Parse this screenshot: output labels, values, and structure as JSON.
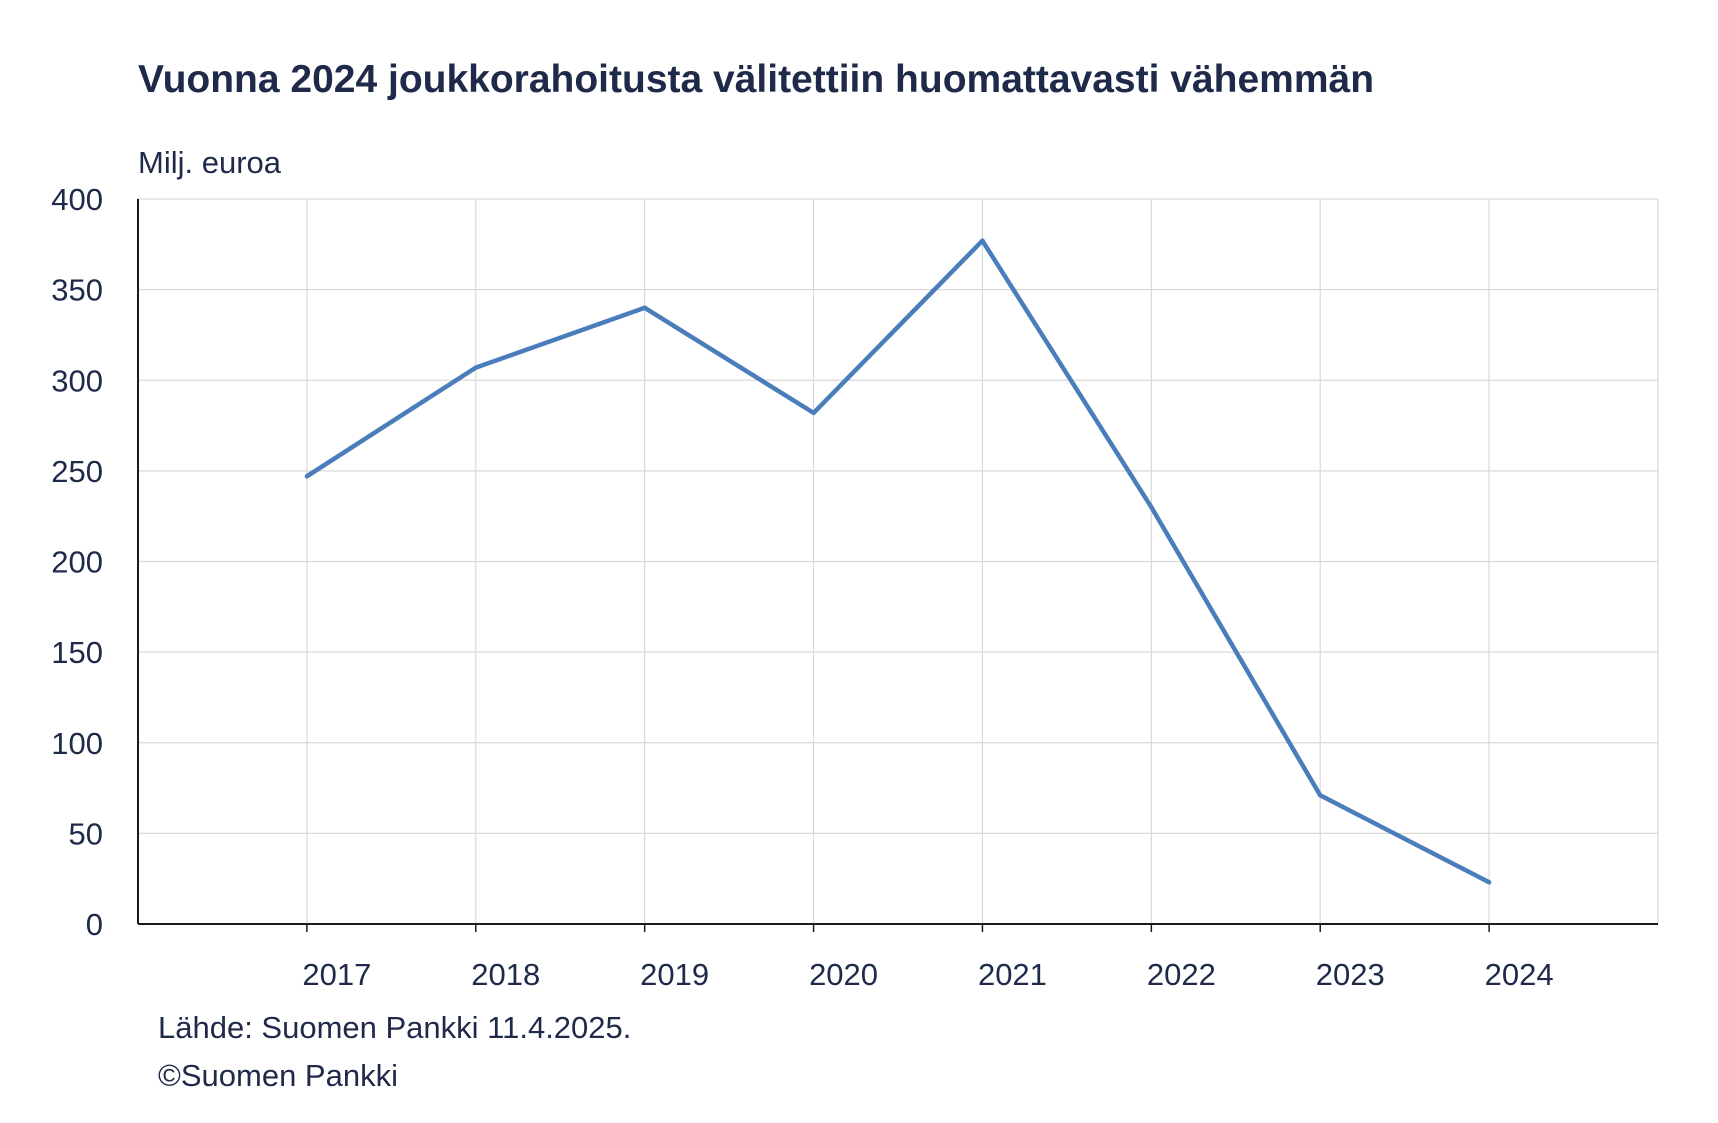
{
  "chart_data": {
    "type": "line",
    "title": "Vuonna 2024 joukkorahoitusta välitettiin huomattavasti vähemmän",
    "ylabel": "Milj. euroa",
    "xlabel": "",
    "ylim": [
      0,
      400
    ],
    "y_ticks": [
      0,
      50,
      100,
      150,
      200,
      250,
      300,
      350,
      400
    ],
    "categories": [
      "2017",
      "2018",
      "2019",
      "2020",
      "2021",
      "2022",
      "2023",
      "2024"
    ],
    "series": [
      {
        "values": [
          247,
          307,
          340,
          282,
          377,
          230,
          71,
          23
        ]
      }
    ],
    "grid": true,
    "legend": "none"
  },
  "colors": {
    "line": "#4a7ebb",
    "grid": "#d9d9d9",
    "axis": "#1a1a1a",
    "text": "#1f2a4a"
  },
  "footer": {
    "source": "Lähde: Suomen Pankki 11.4.2025.",
    "copyright": "©Suomen Pankki"
  }
}
